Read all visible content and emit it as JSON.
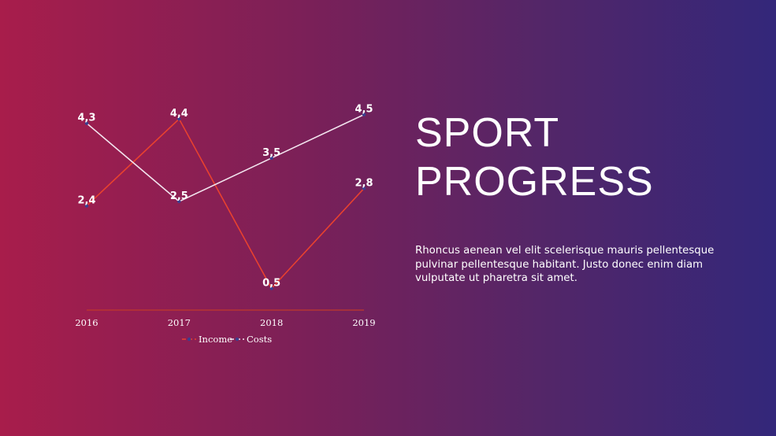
{
  "title": {
    "line1": "SPORT",
    "line2": "PROGRESS"
  },
  "body": "Rhoncus aenean vel elit scelerisque mauris pellentesque pulvinar pellentesque habitant. Justo donec enim diam vulputate ut pharetra sit amet.",
  "colors": {
    "income": "#e8412f",
    "costs": "#f2e4ee",
    "axis": "#c0392b",
    "marker": "#3a3f8f"
  },
  "chart_data": {
    "type": "line",
    "categories": [
      "2016",
      "2017",
      "2018",
      "2019"
    ],
    "series": [
      {
        "name": "Income",
        "values": [
          2.4,
          4.4,
          0.5,
          2.8
        ],
        "labels": [
          "2,4",
          "4,4",
          "0,5",
          "2,8"
        ]
      },
      {
        "name": "Costs",
        "values": [
          4.3,
          2.5,
          3.5,
          4.5
        ],
        "labels": [
          "4,3",
          "2,5",
          "3,5",
          "4,5"
        ]
      }
    ],
    "ylim": [
      0,
      5
    ],
    "grid": false,
    "legend": "bottom"
  }
}
